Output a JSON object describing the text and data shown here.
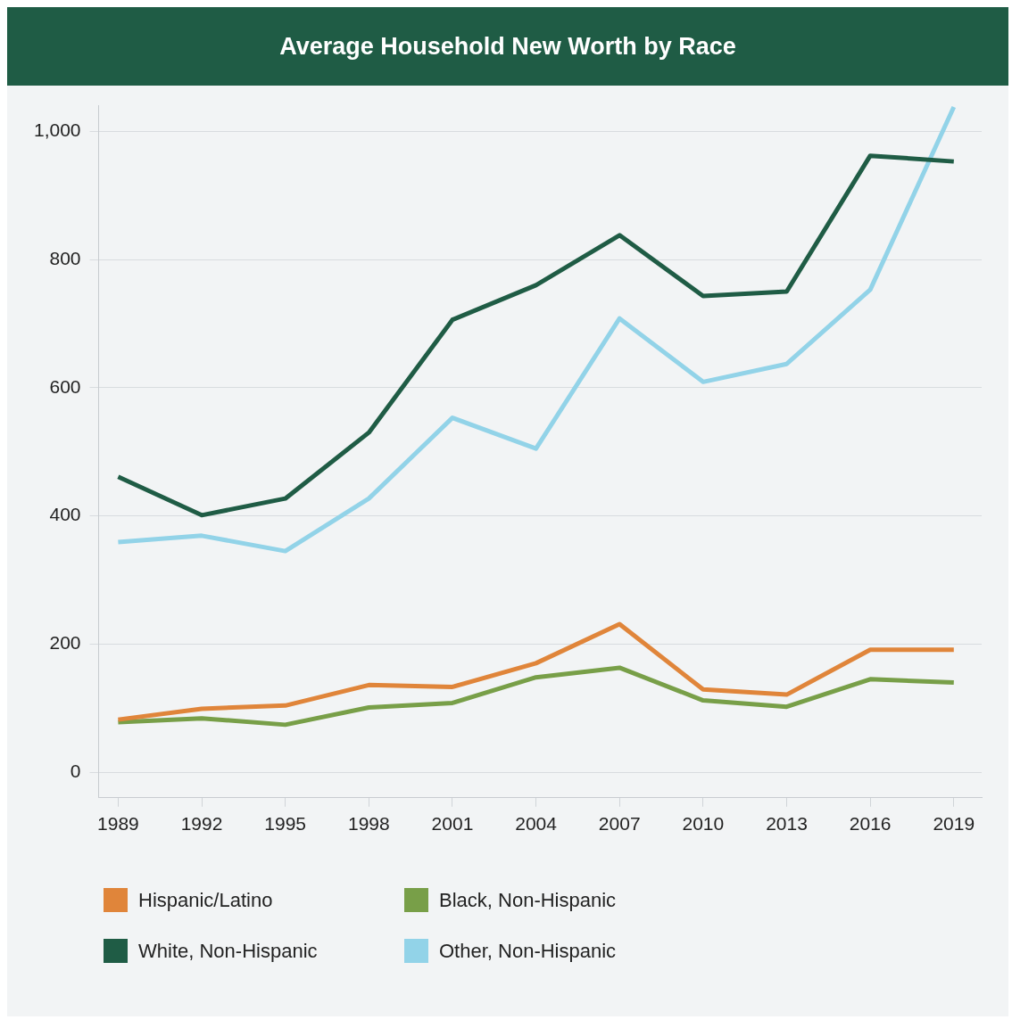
{
  "chart_data": {
    "type": "line",
    "title": "Average Household New Worth by Race",
    "x": [
      1989,
      1992,
      1995,
      1998,
      2001,
      2004,
      2007,
      2010,
      2013,
      2016,
      2019
    ],
    "xlim": [
      1988.3,
      2020
    ],
    "xticks": [
      1989,
      1992,
      1995,
      1998,
      2001,
      2004,
      2007,
      2010,
      2013,
      2016,
      2019
    ],
    "ylim": [
      -40,
      1040
    ],
    "yticks": [
      0,
      200,
      400,
      600,
      800,
      {
        "value": 1000,
        "label": "1,000"
      }
    ],
    "grid": "y",
    "legend": "bottom",
    "marker": "none",
    "line_style": "solid",
    "series": [
      {
        "name": "Hispanic/Latino",
        "color": "#e0853a",
        "values": [
          82,
          99,
          104,
          136,
          133,
          170,
          231,
          129,
          121,
          191,
          191
        ]
      },
      {
        "name": "Black, Non-Hispanic",
        "color": "#789f48",
        "values": [
          78,
          84,
          74,
          101,
          108,
          148,
          163,
          112,
          102,
          145,
          140
        ]
      },
      {
        "name": "White, Non-Hispanic",
        "color": "#1f5c45",
        "values": [
          461,
          401,
          427,
          530,
          706,
          760,
          838,
          743,
          750,
          962,
          953
        ]
      },
      {
        "name": "Other, Non-Hispanic",
        "color": "#92d3e8",
        "values": [
          359,
          369,
          345,
          427,
          553,
          505,
          708,
          609,
          637,
          753,
          1038
        ]
      }
    ]
  }
}
